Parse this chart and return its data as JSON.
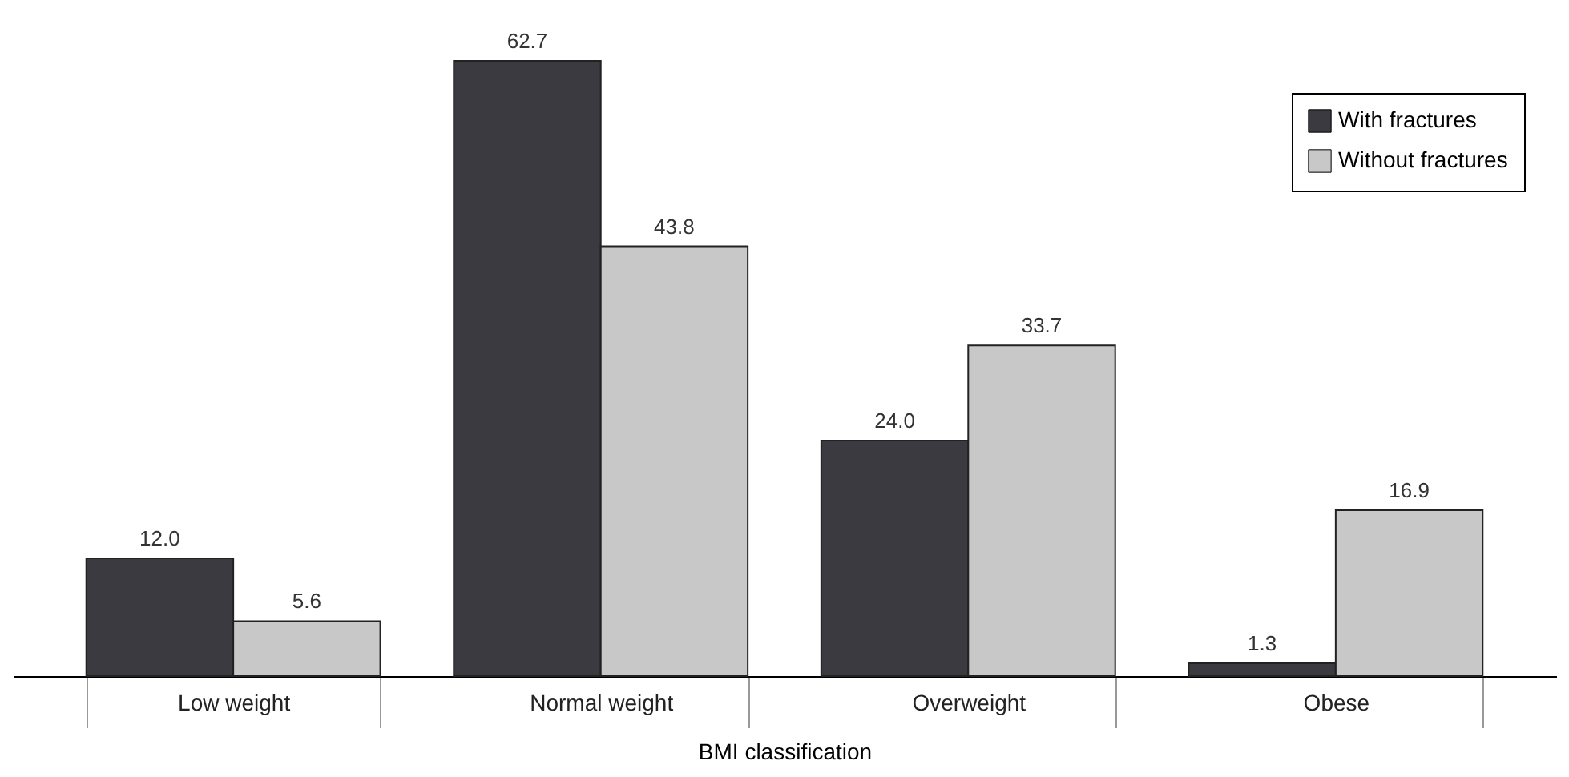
{
  "chart_data": {
    "type": "bar",
    "xlabel": "BMI classification",
    "categories": [
      "Low weight",
      "Normal weight",
      "Overweight",
      "Obese"
    ],
    "series": [
      {
        "name": "With fractures",
        "color": "#3a3a40",
        "values": [
          12.0,
          62.7,
          24.0,
          1.3
        ],
        "value_labels": [
          "12.0",
          "62.7",
          "24.0",
          "1.3"
        ]
      },
      {
        "name": "Without fractures",
        "color": "#c8c8c8",
        "values": [
          5.6,
          43.8,
          33.7,
          16.9
        ],
        "value_labels": [
          "5.6",
          "43.8",
          "33.7",
          "16.9"
        ]
      }
    ],
    "grid": false,
    "legend": "top right"
  }
}
